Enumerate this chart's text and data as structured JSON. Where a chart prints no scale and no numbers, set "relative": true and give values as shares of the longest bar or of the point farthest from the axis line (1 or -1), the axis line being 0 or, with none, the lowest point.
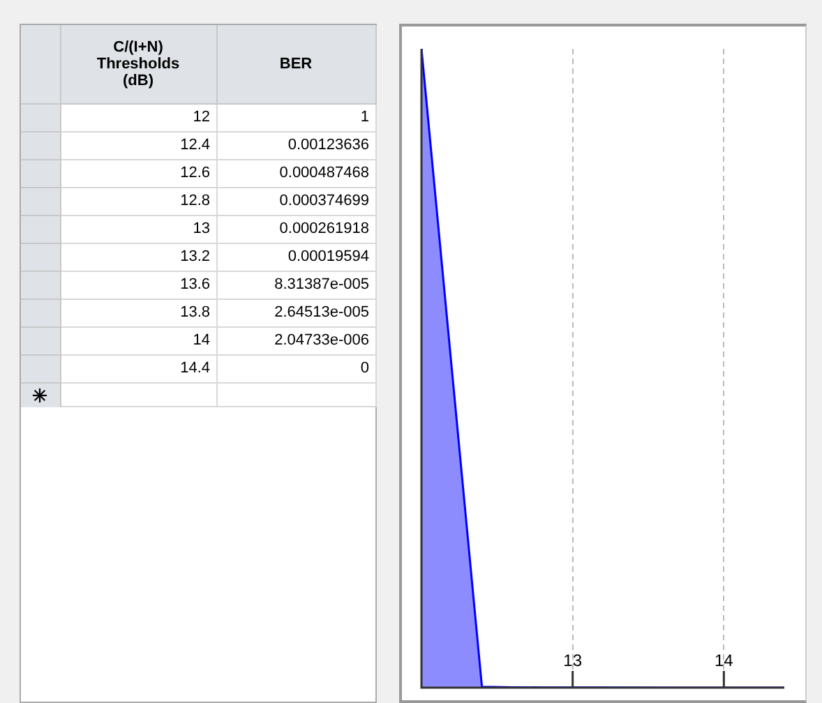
{
  "chart_data": [
    {
      "type": "other",
      "xlabel": "C/(I+N) Thresholds (dB)",
      "ylabel": "BER",
      "categories": [
        "12",
        "12.4",
        "12.6",
        "12.8",
        "13",
        "13.2",
        "13.6",
        "13.8",
        "14",
        "14.4"
      ],
      "values": [
        1,
        0.00123636,
        0.000487468,
        0.000374699,
        0.000261918,
        0.00019594,
        8.31387e-05,
        2.64513e-05,
        2.04733e-06,
        0
      ],
      "value_labels": [
        "1",
        "0.00123636",
        "0.000487468",
        "0.000374699",
        "0.000261918",
        "0.00019594",
        "8.31387e-005",
        "2.64513e-005",
        "2.04733e-006",
        "0"
      ]
    },
    {
      "type": "area",
      "relative": true,
      "x": [
        12,
        12.4,
        12.6,
        12.8,
        13,
        13.2,
        13.6,
        13.8,
        14,
        14.4
      ],
      "values": [
        1,
        0.00123636,
        0.000487468,
        0.000374699,
        0.000261918,
        0.00019594,
        8.31387e-05,
        2.64513e-05,
        2.04733e-06,
        0
      ],
      "color": "#0000ff",
      "xlim": [
        12,
        14.4
      ],
      "xticks": [
        13,
        14
      ],
      "grid": "x",
      "legend": false,
      "tick_labels": "x"
    }
  ]
}
